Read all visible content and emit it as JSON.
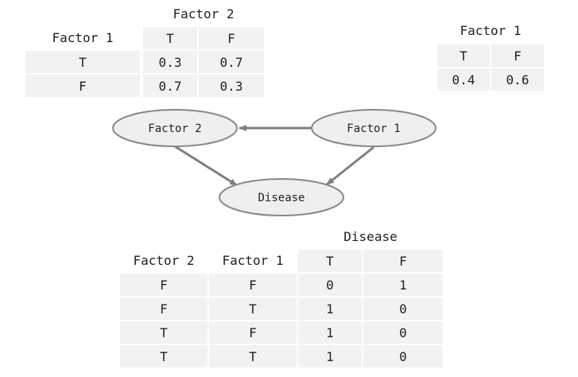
{
  "cpt_factor2": {
    "column_var": "Factor 2",
    "row_var": "Factor 1",
    "columns": [
      "T",
      "F"
    ],
    "rows": [
      {
        "label": "T",
        "values": [
          "0.3",
          "0.7"
        ]
      },
      {
        "label": "F",
        "values": [
          "0.7",
          "0.3"
        ]
      }
    ]
  },
  "cpt_factor1": {
    "column_var": "Factor 1",
    "columns": [
      "T",
      "F"
    ],
    "values": [
      "0.4",
      "0.6"
    ]
  },
  "nodes": {
    "factor2": "Factor 2",
    "factor1": "Factor 1",
    "disease": "Disease"
  },
  "edges": [
    {
      "from": "Factor 1",
      "to": "Factor 2"
    },
    {
      "from": "Factor 2",
      "to": "Disease"
    },
    {
      "from": "Factor 1",
      "to": "Disease"
    }
  ],
  "cpt_disease": {
    "column_var": "Disease",
    "parent_headers": [
      "Factor 2",
      "Factor 1"
    ],
    "columns": [
      "T",
      "F"
    ],
    "rows": [
      {
        "factor2": "F",
        "factor1": "F",
        "values": [
          "0",
          "1"
        ]
      },
      {
        "factor2": "F",
        "factor1": "T",
        "values": [
          "1",
          "0"
        ]
      },
      {
        "factor2": "T",
        "factor1": "F",
        "values": [
          "1",
          "0"
        ]
      },
      {
        "factor2": "T",
        "factor1": "T",
        "values": [
          "1",
          "0"
        ]
      }
    ]
  },
  "colors": {
    "cell_fill": "#f2f2f2",
    "node_fill": "#efefef",
    "node_stroke": "#888888",
    "edge": "#7f7f7f"
  }
}
